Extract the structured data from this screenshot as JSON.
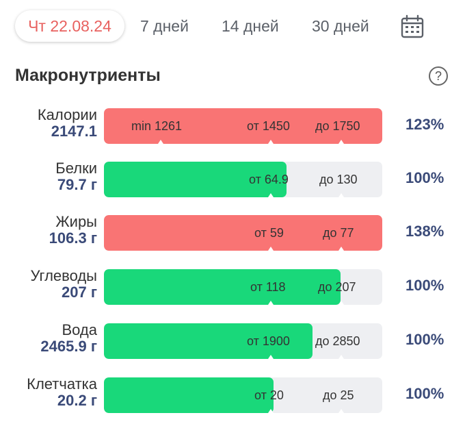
{
  "tabs": {
    "active": "Чт 22.08.24",
    "t7": "7 дней",
    "t14": "14 дней",
    "t30": "30 дней"
  },
  "section": {
    "title": "Макронутриенты",
    "help": "?"
  },
  "rows": [
    {
      "name": "Калории",
      "value": "2147.1",
      "fill": 1.0,
      "color": "red",
      "min_label": "min 1261",
      "from_label": "от 1450",
      "to_label": "до 1750",
      "pct": "123%"
    },
    {
      "name": "Белки",
      "value": "79.7 г",
      "fill": 0.655,
      "color": "green",
      "from_label": "от 64.9",
      "to_label": "до 130",
      "pct": "100%"
    },
    {
      "name": "Жиры",
      "value": "106.3 г",
      "fill": 1.0,
      "color": "red",
      "from_label": "от 59",
      "to_label": "до 77",
      "pct": "138%"
    },
    {
      "name": "Углеводы",
      "value": "207 г",
      "fill": 0.85,
      "color": "green",
      "from_label": "от 118",
      "to_label": "до 207",
      "pct": "100%"
    },
    {
      "name": "Вода",
      "value": "2465.9 г",
      "fill": 0.75,
      "color": "green",
      "from_label": "от 1900",
      "to_label": "до 2850",
      "pct": "100%"
    },
    {
      "name": "Клетчатка",
      "value": "20.2 г",
      "fill": 0.61,
      "color": "green",
      "from_label": "от 20",
      "to_label": "до 25",
      "pct": "100%"
    }
  ],
  "colors": {
    "red": "#f97474",
    "green": "#19d87a",
    "accent_text": "#e8615f",
    "value_text": "#3a4a78"
  }
}
